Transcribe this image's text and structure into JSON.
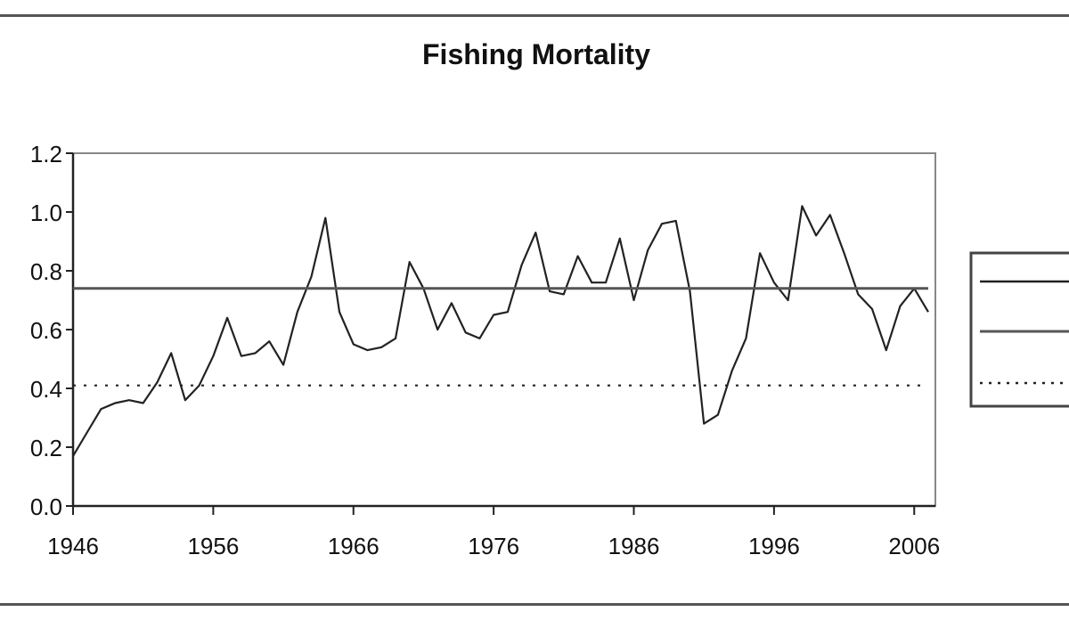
{
  "chart_data": {
    "type": "line",
    "title": "Fishing Mortality",
    "xlabel": "",
    "ylabel": "",
    "xlim": [
      1946,
      2007
    ],
    "ylim": [
      0.0,
      1.2
    ],
    "x_ticks": [
      "1946",
      "1956",
      "1966",
      "1976",
      "1986",
      "1996",
      "2006"
    ],
    "y_ticks": [
      "0.0",
      "0.2",
      "0.4",
      "0.6",
      "0.8",
      "1.0",
      "1.2"
    ],
    "grid": false,
    "legend_position": "right",
    "series": [
      {
        "line_style": "solid",
        "color": "#222222",
        "x": [
          1946,
          1947,
          1948,
          1949,
          1950,
          1951,
          1952,
          1953,
          1954,
          1955,
          1956,
          1957,
          1958,
          1959,
          1960,
          1961,
          1962,
          1963,
          1964,
          1965,
          1966,
          1967,
          1968,
          1969,
          1970,
          1971,
          1972,
          1973,
          1974,
          1975,
          1976,
          1977,
          1978,
          1979,
          1980,
          1981,
          1982,
          1983,
          1984,
          1985,
          1986,
          1987,
          1988,
          1989,
          1990,
          1991,
          1992,
          1993,
          1994,
          1995,
          1996,
          1997,
          1998,
          1999,
          2000,
          2001,
          2002,
          2003,
          2004,
          2005,
          2006,
          2007
        ],
        "y": [
          0.17,
          0.25,
          0.33,
          0.35,
          0.36,
          0.35,
          0.42,
          0.52,
          0.36,
          0.41,
          0.51,
          0.64,
          0.51,
          0.52,
          0.56,
          0.48,
          0.66,
          0.78,
          0.98,
          0.66,
          0.55,
          0.53,
          0.54,
          0.57,
          0.83,
          0.74,
          0.6,
          0.69,
          0.59,
          0.57,
          0.65,
          0.66,
          0.82,
          0.93,
          0.73,
          0.72,
          0.85,
          0.76,
          0.76,
          0.91,
          0.7,
          0.87,
          0.96,
          0.97,
          0.73,
          0.28,
          0.31,
          0.46,
          0.57,
          0.86,
          0.76,
          0.7,
          1.02,
          0.92,
          0.99,
          0.86,
          0.72,
          0.67,
          0.53,
          0.68,
          0.74,
          0.66
        ]
      },
      {
        "line_style": "solid",
        "color": "#555555",
        "x": [
          1946,
          2007
        ],
        "y": [
          0.74,
          0.74
        ]
      },
      {
        "line_style": "dotted",
        "color": "#222222",
        "x": [
          1946,
          2007
        ],
        "y": [
          0.41,
          0.41
        ]
      }
    ]
  }
}
